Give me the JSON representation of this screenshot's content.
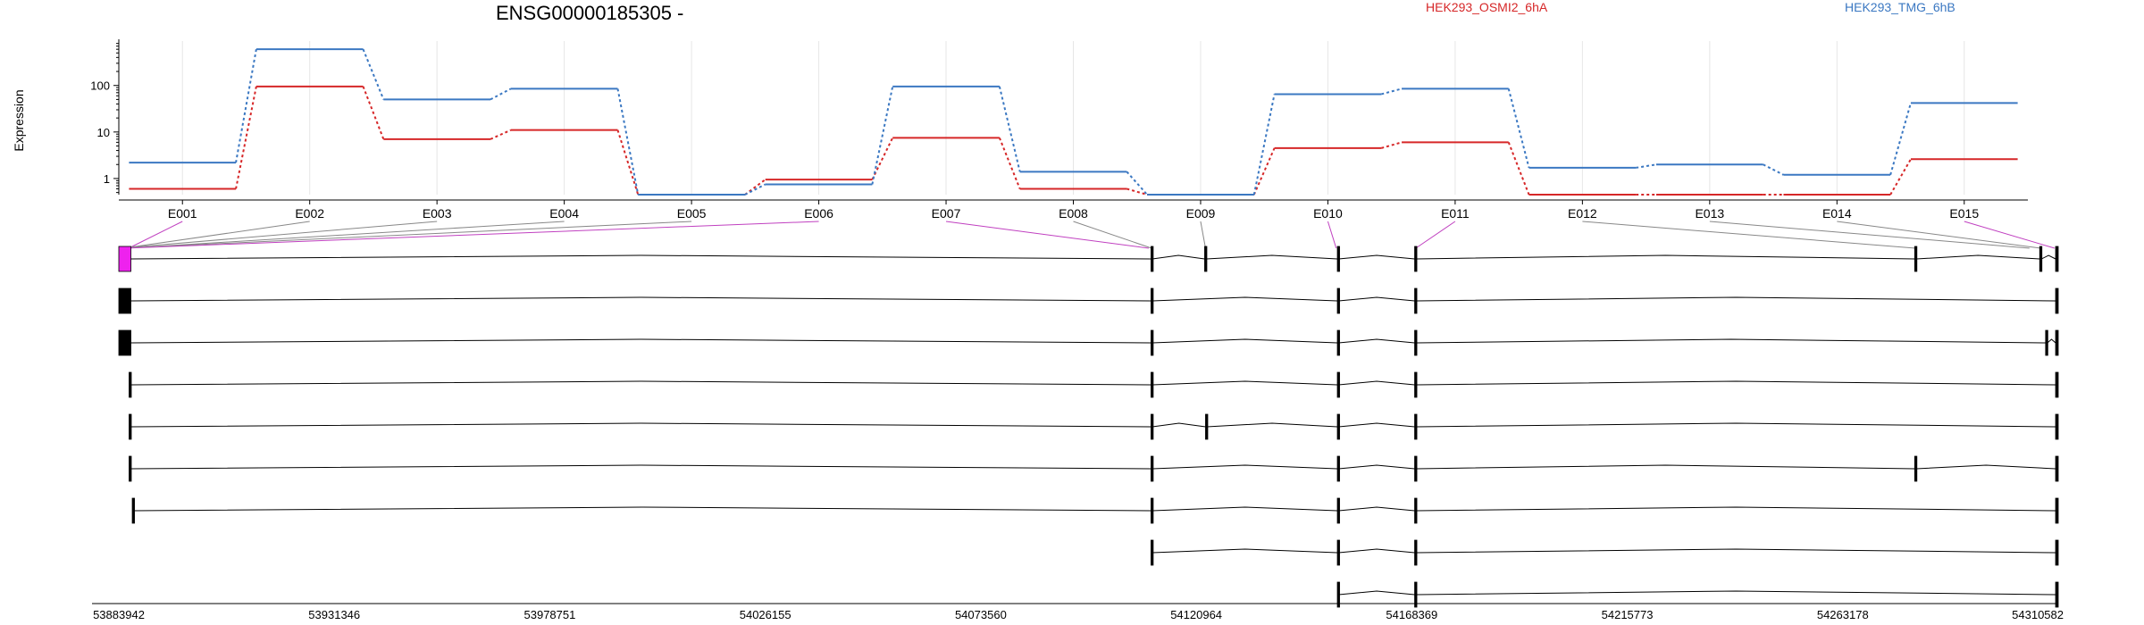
{
  "chart_data": {
    "type": "line",
    "title": "ENSG00000185305 -",
    "ylabel": "Expression",
    "yscale": "log",
    "ylim": [
      0.45,
      900
    ],
    "y_ticks": [
      1,
      10,
      100
    ],
    "y_tick_labels": [
      "1",
      "10",
      "100"
    ],
    "grid": true,
    "legend": "top",
    "categories": [
      "E001",
      "E002",
      "E003",
      "E004",
      "E005",
      "E006",
      "E007",
      "E008",
      "E009",
      "E010",
      "E011",
      "E012",
      "E013",
      "E014",
      "E015"
    ],
    "series": [
      {
        "name": "HEK293_OSMI2_6hA",
        "color": "#d62728",
        "values": [
          0.6,
          95,
          7,
          11,
          0.45,
          0.95,
          7.5,
          0.6,
          0.45,
          4.5,
          6,
          0.45,
          0.45,
          0.45,
          2.6
        ]
      },
      {
        "name": "HEK293_TMG_6hB",
        "color": "#3b78c2",
        "values": [
          2.2,
          600,
          50,
          85,
          0.45,
          0.75,
          95,
          1.4,
          0.45,
          65,
          85,
          1.7,
          2,
          1.2,
          42
        ]
      }
    ],
    "genomic_axis": {
      "min": 53883942,
      "max": 54310582,
      "tick_labels": [
        "53883942",
        "53931346",
        "53978751",
        "54026155",
        "54073560",
        "54120964",
        "54168369",
        "54215773",
        "54263178",
        "54310582"
      ]
    },
    "exons": [
      {
        "id": "E001",
        "start": 53885800,
        "end": 53886400,
        "highlight": true
      },
      {
        "id": "E002",
        "start": 53884600,
        "end": 53885300,
        "highlight": false
      },
      {
        "id": "E003",
        "start": 53884000,
        "end": 53884500,
        "highlight": false
      },
      {
        "id": "E004",
        "start": 53885300,
        "end": 53885800,
        "highlight": false
      },
      {
        "id": "E005",
        "start": 53884300,
        "end": 53884700,
        "highlight": false
      },
      {
        "id": "E006",
        "start": 53883942,
        "end": 53886600,
        "highlight": true
      },
      {
        "id": "E007",
        "start": 54110000,
        "end": 54111000,
        "highlight": true
      },
      {
        "id": "E008",
        "start": 54110900,
        "end": 54111400,
        "highlight": false
      },
      {
        "id": "E009",
        "start": 54122800,
        "end": 54123200,
        "highlight": false
      },
      {
        "id": "E010",
        "start": 54151500,
        "end": 54152000,
        "highlight": true
      },
      {
        "id": "E011",
        "start": 54169000,
        "end": 54169500,
        "highlight": true
      },
      {
        "id": "E012",
        "start": 54279000,
        "end": 54279400,
        "highlight": false
      },
      {
        "id": "E013",
        "start": 54304000,
        "end": 54304500,
        "highlight": false
      },
      {
        "id": "E014",
        "start": 54306500,
        "end": 54307000,
        "highlight": false
      },
      {
        "id": "E015",
        "start": 54309000,
        "end": 54310582,
        "highlight": true
      }
    ],
    "transcripts": [
      {
        "exons": [
          [
            53883942,
            53886600
          ],
          [
            54111000,
            54111300
          ],
          [
            54122800,
            54123200
          ],
          [
            54152000,
            54152300
          ],
          [
            54169000,
            54169400
          ],
          [
            54279000,
            54279400
          ],
          [
            54306500,
            54306900
          ],
          [
            54310000,
            54310582
          ]
        ],
        "first_exon_highlight": true
      },
      {
        "exons": [
          [
            53883942,
            53886600
          ],
          [
            54111000,
            54111300
          ],
          [
            54152000,
            54152300
          ],
          [
            54169000,
            54169400
          ],
          [
            54310000,
            54310582
          ]
        ],
        "first_exon_highlight": false
      },
      {
        "exons": [
          [
            53883942,
            53886600
          ],
          [
            54111000,
            54111300
          ],
          [
            54152000,
            54152300
          ],
          [
            54169000,
            54169400
          ],
          [
            54307800,
            54308200
          ],
          [
            54310000,
            54310582
          ]
        ],
        "first_exon_highlight": false
      },
      {
        "exons": [
          [
            53886200,
            53886600
          ],
          [
            54111000,
            54111300
          ],
          [
            54152000,
            54152300
          ],
          [
            54169000,
            54169400
          ],
          [
            54310000,
            54310582
          ]
        ],
        "first_exon_highlight": false
      },
      {
        "exons": [
          [
            53886200,
            53886600
          ],
          [
            54111000,
            54111300
          ],
          [
            54123000,
            54123300
          ],
          [
            54152000,
            54152300
          ],
          [
            54169000,
            54169400
          ],
          [
            54310000,
            54310582
          ]
        ],
        "first_exon_highlight": false
      },
      {
        "exons": [
          [
            53886200,
            53886600
          ],
          [
            54111000,
            54111300
          ],
          [
            54152000,
            54152300
          ],
          [
            54169000,
            54169400
          ],
          [
            54279000,
            54279400
          ],
          [
            54310000,
            54310582
          ]
        ],
        "first_exon_highlight": false
      },
      {
        "exons": [
          [
            53886900,
            53887200
          ],
          [
            54111000,
            54111300
          ],
          [
            54152000,
            54152300
          ],
          [
            54169000,
            54169400
          ],
          [
            54310000,
            54310582
          ]
        ],
        "first_exon_highlight": false
      },
      {
        "exons": [
          [
            54111000,
            54111300
          ],
          [
            54152000,
            54152300
          ],
          [
            54169000,
            54169400
          ],
          [
            54310000,
            54310582
          ]
        ],
        "first_exon_highlight": false
      },
      {
        "exons": [
          [
            54152000,
            54152300
          ],
          [
            54169000,
            54169400
          ],
          [
            54310000,
            54310582
          ]
        ],
        "first_exon_highlight": false
      }
    ]
  }
}
